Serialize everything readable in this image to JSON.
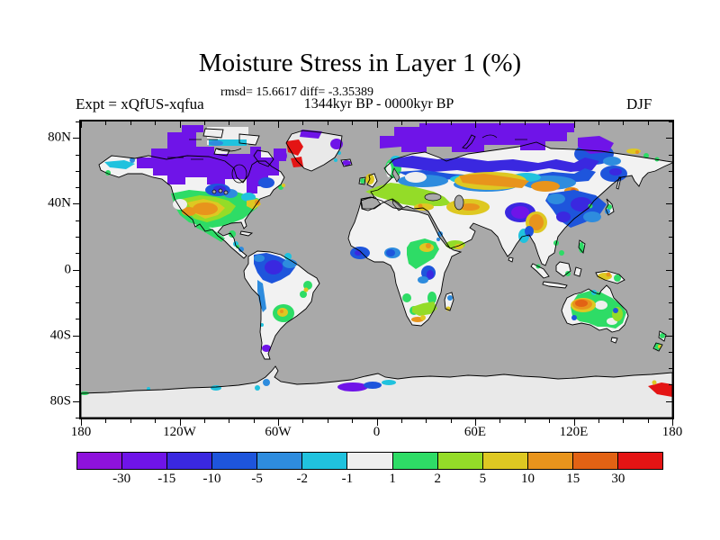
{
  "figure": {
    "title": "Moisture Stress in Layer 1 (%)",
    "stats": "rmsd= 15.6617 diff= -3.35389",
    "period": "1344kyr BP - 0000kyr BP",
    "experiment": "Expt = xQfUS-xqfua",
    "season": "DJF"
  },
  "map": {
    "ocean_color": "#A9A9A9",
    "land_color": "#F2F2F2",
    "ice_color": "#E9E9E9",
    "x_axis": {
      "major_labels": [
        "180",
        "120W",
        "60W",
        "0",
        "60E",
        "120E",
        "180"
      ],
      "major_lons": [
        -180,
        -120,
        -60,
        0,
        60,
        120,
        180
      ],
      "minor_step_deg": 15
    },
    "y_axis": {
      "major_labels": [
        "80N",
        "40N",
        "0",
        "40S",
        "80S"
      ],
      "major_lats": [
        80,
        40,
        0,
        -40,
        -80
      ],
      "minor_step_deg": 10
    }
  },
  "colorbar": {
    "levels": [
      "-30",
      "-15",
      "-10",
      "-5",
      "-2",
      "-1",
      "1",
      "2",
      "5",
      "10",
      "15",
      "30"
    ],
    "colors": [
      "#8E12DC",
      "#6F14E8",
      "#3A28E0",
      "#1E55DC",
      "#2E8CDE",
      "#20C2DE",
      "#EFEFEF",
      "#2EDC66",
      "#94DC28",
      "#DEC822",
      "#E8941C",
      "#E26214",
      "#E41414"
    ]
  },
  "chart_data": {
    "type": "heatmap",
    "title": "Moisture Stress in Layer 1 (%)",
    "subtitle": "1344kyr BP - 0000kyr BP",
    "statistics": {
      "rmsd": 15.6617,
      "diff": -3.35389
    },
    "experiment": "xQfUS-xqfua",
    "season": "DJF",
    "units": "%",
    "projection": "global equirectangular map, 90N-90S / 180W-180E",
    "x_ticks": [
      "180",
      "120W",
      "60W",
      "0",
      "60E",
      "120E",
      "180"
    ],
    "y_ticks": [
      "80N",
      "40N",
      "0",
      "40S",
      "80S"
    ],
    "color_scale": {
      "boundaries": [
        -30,
        -15,
        -10,
        -5,
        -2,
        -1,
        1,
        2,
        5,
        10,
        15,
        30
      ],
      "colors": [
        "#8E12DC",
        "#6F14E8",
        "#3A28E0",
        "#1E55DC",
        "#2E8CDE",
        "#20C2DE",
        "#EFEFEF",
        "#2EDC66",
        "#94DC28",
        "#DEC822",
        "#E8941C",
        "#E26214",
        "#E41414"
      ]
    },
    "visible_features": [
      "strong negative (purple) anomalies over arctic Canada and northern Siberia",
      "red positive anomaly over Davis Strait / west Greenland coast",
      "green-yellow-orange positive band across central North America, Europe, Kazakhstan and central Asia",
      "blue negative anomalies over Amazonia, eastern Asia, equatorial East Africa and Tibet",
      "orange-red positive anomaly over western Australia, green over eastern Australia",
      "light gray ice/neutral over Greenland and Antarctica with red spot on Antarctic coast near 180E"
    ]
  }
}
